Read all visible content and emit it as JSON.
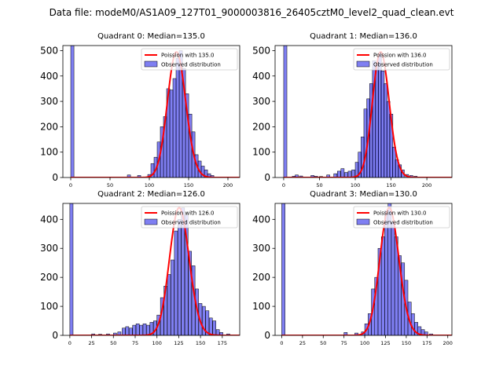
{
  "chart_data": {
    "type": "bar",
    "suptitle": "Data file: modeM0/AS1A09_127T01_9000003816_26405cztM0_level2_quad_clean.evt",
    "panels": [
      {
        "title": "Quadrant 0: Median=135.0",
        "xlim": [
          -10,
          215
        ],
        "ylim": [
          0,
          520
        ],
        "xticks": [
          0,
          50,
          100,
          150,
          200
        ],
        "yticks": [
          0,
          100,
          200,
          300,
          400,
          500
        ],
        "legend": {
          "line": "Poission with 135.0",
          "bars": "Observed distribution"
        },
        "median": 135,
        "bin_width": 4.1,
        "bins": [
          [
            0,
            520
          ],
          [
            72,
            10
          ],
          [
            85,
            8
          ],
          [
            98,
            12
          ],
          [
            102,
            55
          ],
          [
            106,
            80
          ],
          [
            110,
            140
          ],
          [
            114,
            200
          ],
          [
            118,
            240
          ],
          [
            122,
            350
          ],
          [
            126,
            345
          ],
          [
            130,
            390
          ],
          [
            134,
            470
          ],
          [
            138,
            500
          ],
          [
            142,
            430
          ],
          [
            146,
            330
          ],
          [
            150,
            250
          ],
          [
            154,
            180
          ],
          [
            158,
            90
          ],
          [
            162,
            65
          ],
          [
            166,
            45
          ],
          [
            170,
            30
          ],
          [
            174,
            15
          ],
          [
            178,
            8
          ]
        ],
        "curve_peak": 495
      },
      {
        "title": "Quadrant 1: Median=136.0",
        "xlim": [
          -12,
          235
        ],
        "ylim": [
          0,
          520
        ],
        "xticks": [
          0,
          50,
          100,
          150,
          200
        ],
        "yticks": [
          0,
          100,
          200,
          300,
          400,
          500
        ],
        "legend": {
          "line": "Poission with 136.0",
          "bars": "Observed distribution"
        },
        "median": 136,
        "bin_width": 4.5,
        "bins": [
          [
            0,
            520
          ],
          [
            12,
            5
          ],
          [
            16,
            10
          ],
          [
            22,
            6
          ],
          [
            38,
            8
          ],
          [
            43,
            5
          ],
          [
            50,
            4
          ],
          [
            60,
            10
          ],
          [
            70,
            15
          ],
          [
            75,
            25
          ],
          [
            80,
            35
          ],
          [
            85,
            20
          ],
          [
            90,
            25
          ],
          [
            95,
            30
          ],
          [
            100,
            60
          ],
          [
            104,
            100
          ],
          [
            108,
            160
          ],
          [
            112,
            270
          ],
          [
            116,
            310
          ],
          [
            120,
            370
          ],
          [
            124,
            460
          ],
          [
            128,
            450
          ],
          [
            132,
            490
          ],
          [
            136,
            420
          ],
          [
            140,
            370
          ],
          [
            144,
            300
          ],
          [
            148,
            250
          ],
          [
            152,
            120
          ],
          [
            156,
            70
          ],
          [
            160,
            50
          ],
          [
            164,
            30
          ],
          [
            170,
            12
          ],
          [
            176,
            8
          ],
          [
            182,
            5
          ]
        ],
        "curve_peak": 495
      },
      {
        "title": "Quadrant 2: Median=126.0",
        "xlim": [
          -8,
          195
        ],
        "ylim": [
          0,
          455
        ],
        "xticks": [
          0,
          25,
          50,
          75,
          100,
          125,
          150,
          175
        ],
        "yticks": [
          0,
          100,
          200,
          300,
          400
        ],
        "legend": {
          "line": "Poission with 126.0",
          "bars": "Observed distribution"
        },
        "median": 126,
        "bin_width": 3.7,
        "bins": [
          [
            0,
            455
          ],
          [
            25,
            5
          ],
          [
            33,
            4
          ],
          [
            42,
            5
          ],
          [
            50,
            8
          ],
          [
            55,
            12
          ],
          [
            60,
            25
          ],
          [
            64,
            30
          ],
          [
            68,
            25
          ],
          [
            72,
            35
          ],
          [
            76,
            40
          ],
          [
            80,
            35
          ],
          [
            84,
            40
          ],
          [
            88,
            35
          ],
          [
            92,
            45
          ],
          [
            96,
            50
          ],
          [
            100,
            70
          ],
          [
            104,
            130
          ],
          [
            108,
            170
          ],
          [
            112,
            210
          ],
          [
            116,
            260
          ],
          [
            120,
            360
          ],
          [
            124,
            400
          ],
          [
            128,
            440
          ],
          [
            132,
            415
          ],
          [
            136,
            290
          ],
          [
            140,
            240
          ],
          [
            144,
            160
          ],
          [
            148,
            110
          ],
          [
            152,
            100
          ],
          [
            156,
            85
          ],
          [
            160,
            60
          ],
          [
            164,
            50
          ],
          [
            168,
            20
          ],
          [
            172,
            10
          ],
          [
            180,
            5
          ]
        ],
        "curve_peak": 440
      },
      {
        "title": "Quadrant 3: Median=130.0",
        "xlim": [
          -8,
          205
        ],
        "ylim": [
          0,
          455
        ],
        "xticks": [
          0,
          25,
          50,
          75,
          100,
          125,
          150,
          175,
          200
        ],
        "yticks": [
          0,
          100,
          200,
          300,
          400
        ],
        "legend": {
          "line": "Poission with 130.0",
          "bars": "Observed distribution"
        },
        "median": 130,
        "bin_width": 4.0,
        "bins": [
          [
            0,
            455
          ],
          [
            75,
            10
          ],
          [
            88,
            8
          ],
          [
            96,
            12
          ],
          [
            100,
            40
          ],
          [
            104,
            75
          ],
          [
            108,
            160
          ],
          [
            112,
            200
          ],
          [
            116,
            300
          ],
          [
            120,
            340
          ],
          [
            124,
            430
          ],
          [
            128,
            460
          ],
          [
            132,
            390
          ],
          [
            136,
            340
          ],
          [
            140,
            275
          ],
          [
            144,
            250
          ],
          [
            148,
            190
          ],
          [
            152,
            115
          ],
          [
            156,
            75
          ],
          [
            160,
            45
          ],
          [
            164,
            30
          ],
          [
            168,
            20
          ],
          [
            172,
            12
          ],
          [
            178,
            5
          ]
        ],
        "curve_peak": 440
      }
    ]
  }
}
